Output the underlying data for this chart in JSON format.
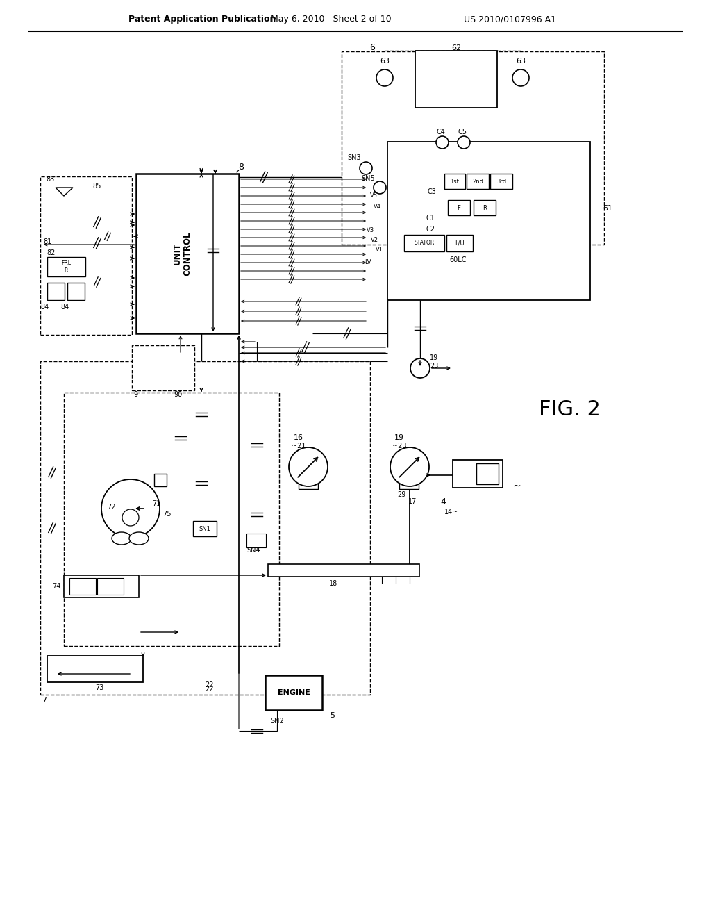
{
  "header_left": "Patent Application Publication",
  "header_mid": "May 6, 2010   Sheet 2 of 10",
  "header_right": "US 2010/0107996 A1",
  "fig_label": "FIG. 2",
  "bg": "#ffffff"
}
